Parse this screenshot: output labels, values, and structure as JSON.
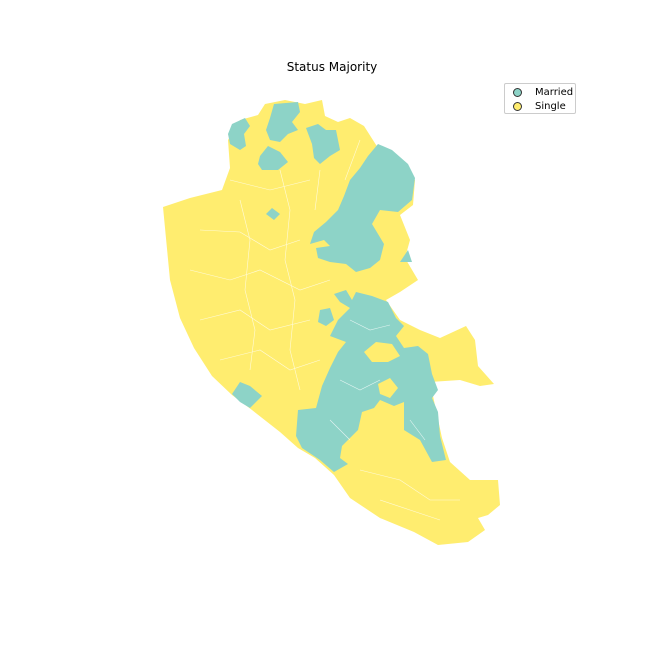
{
  "title": "Status Majority",
  "legend": {
    "married_label": "Married",
    "single_label": "Single"
  },
  "colors": {
    "married": "#8dd3c7",
    "single": "#ffed6f",
    "boundary": "#ffffff"
  }
}
